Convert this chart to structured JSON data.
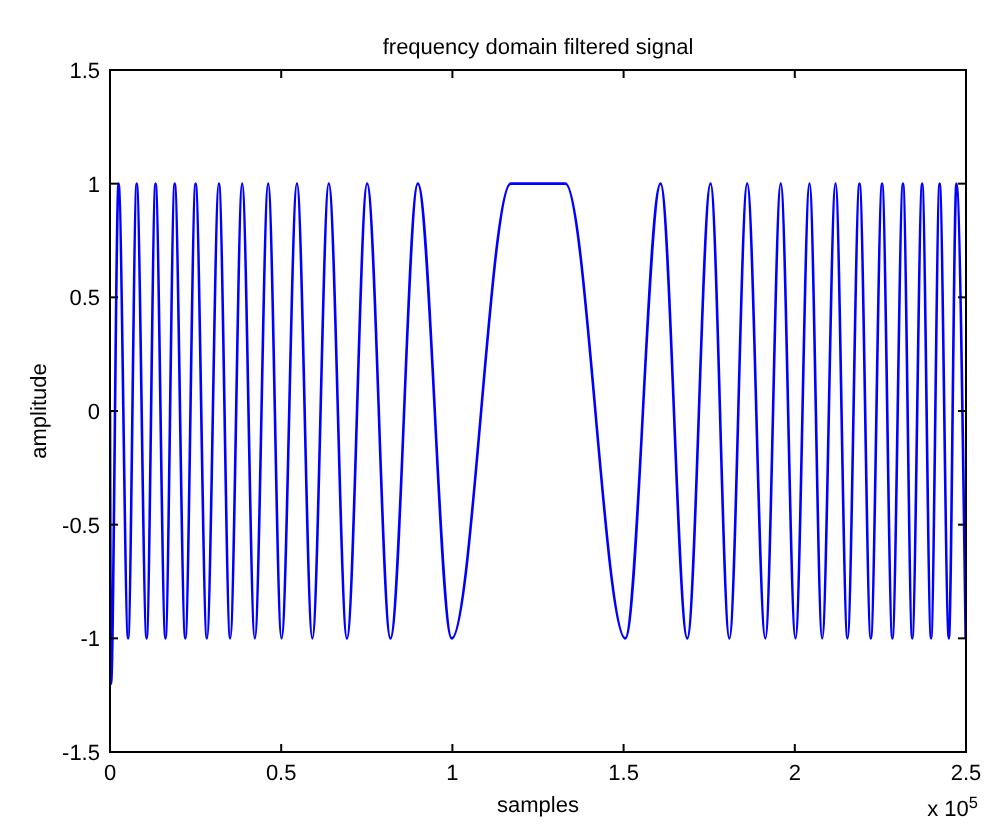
{
  "chart_data": {
    "type": "line",
    "title": "frequency domain filtered signal",
    "xlabel": "samples",
    "ylabel": "amplitude",
    "annotations": [
      "x 10$^{5}$"
    ],
    "xlim": [
      0,
      2.5
    ],
    "xticks": [
      0,
      0.5,
      1,
      1.5,
      2,
      2.5
    ],
    "ylim": [
      -1.5,
      1.5
    ],
    "yticks": [
      -1.5,
      -1,
      -0.5,
      0,
      0.5,
      1,
      1.5
    ],
    "grid": false,
    "series": [
      {
        "color": "#0000ff",
        "x": [
          0,
          0.003,
          0.025,
          0.053,
          0.078,
          0.107,
          0.133,
          0.162,
          0.189,
          0.22,
          0.25,
          0.283,
          0.318,
          0.351,
          0.386,
          0.423,
          0.462,
          0.501,
          0.546,
          0.591,
          0.639,
          0.692,
          0.751,
          0.819,
          0.899,
          0.998,
          1.17,
          1.25,
          1.33,
          1.505,
          1.608,
          1.686,
          1.754,
          1.809,
          1.861,
          1.914,
          1.959,
          2.002,
          2.043,
          2.08,
          2.119,
          2.154,
          2.189,
          2.222,
          2.255,
          2.285,
          2.316,
          2.343,
          2.372,
          2.398,
          2.423,
          2.45,
          2.472,
          2.499
        ],
        "values": [
          0,
          -1.2,
          1,
          -1,
          1,
          -1,
          1,
          -1,
          1,
          -1,
          1,
          -1,
          1,
          -1,
          1,
          -1,
          1,
          -1,
          1,
          -1,
          1,
          -1,
          1,
          -1,
          1,
          -1,
          1,
          1,
          1,
          -1,
          1,
          -1,
          1,
          -1,
          1,
          -1,
          1,
          -1,
          1,
          -1,
          1,
          -1,
          1,
          -1,
          1,
          -1,
          1,
          -1,
          1,
          -1,
          1,
          -1,
          1,
          -1
        ]
      }
    ]
  }
}
